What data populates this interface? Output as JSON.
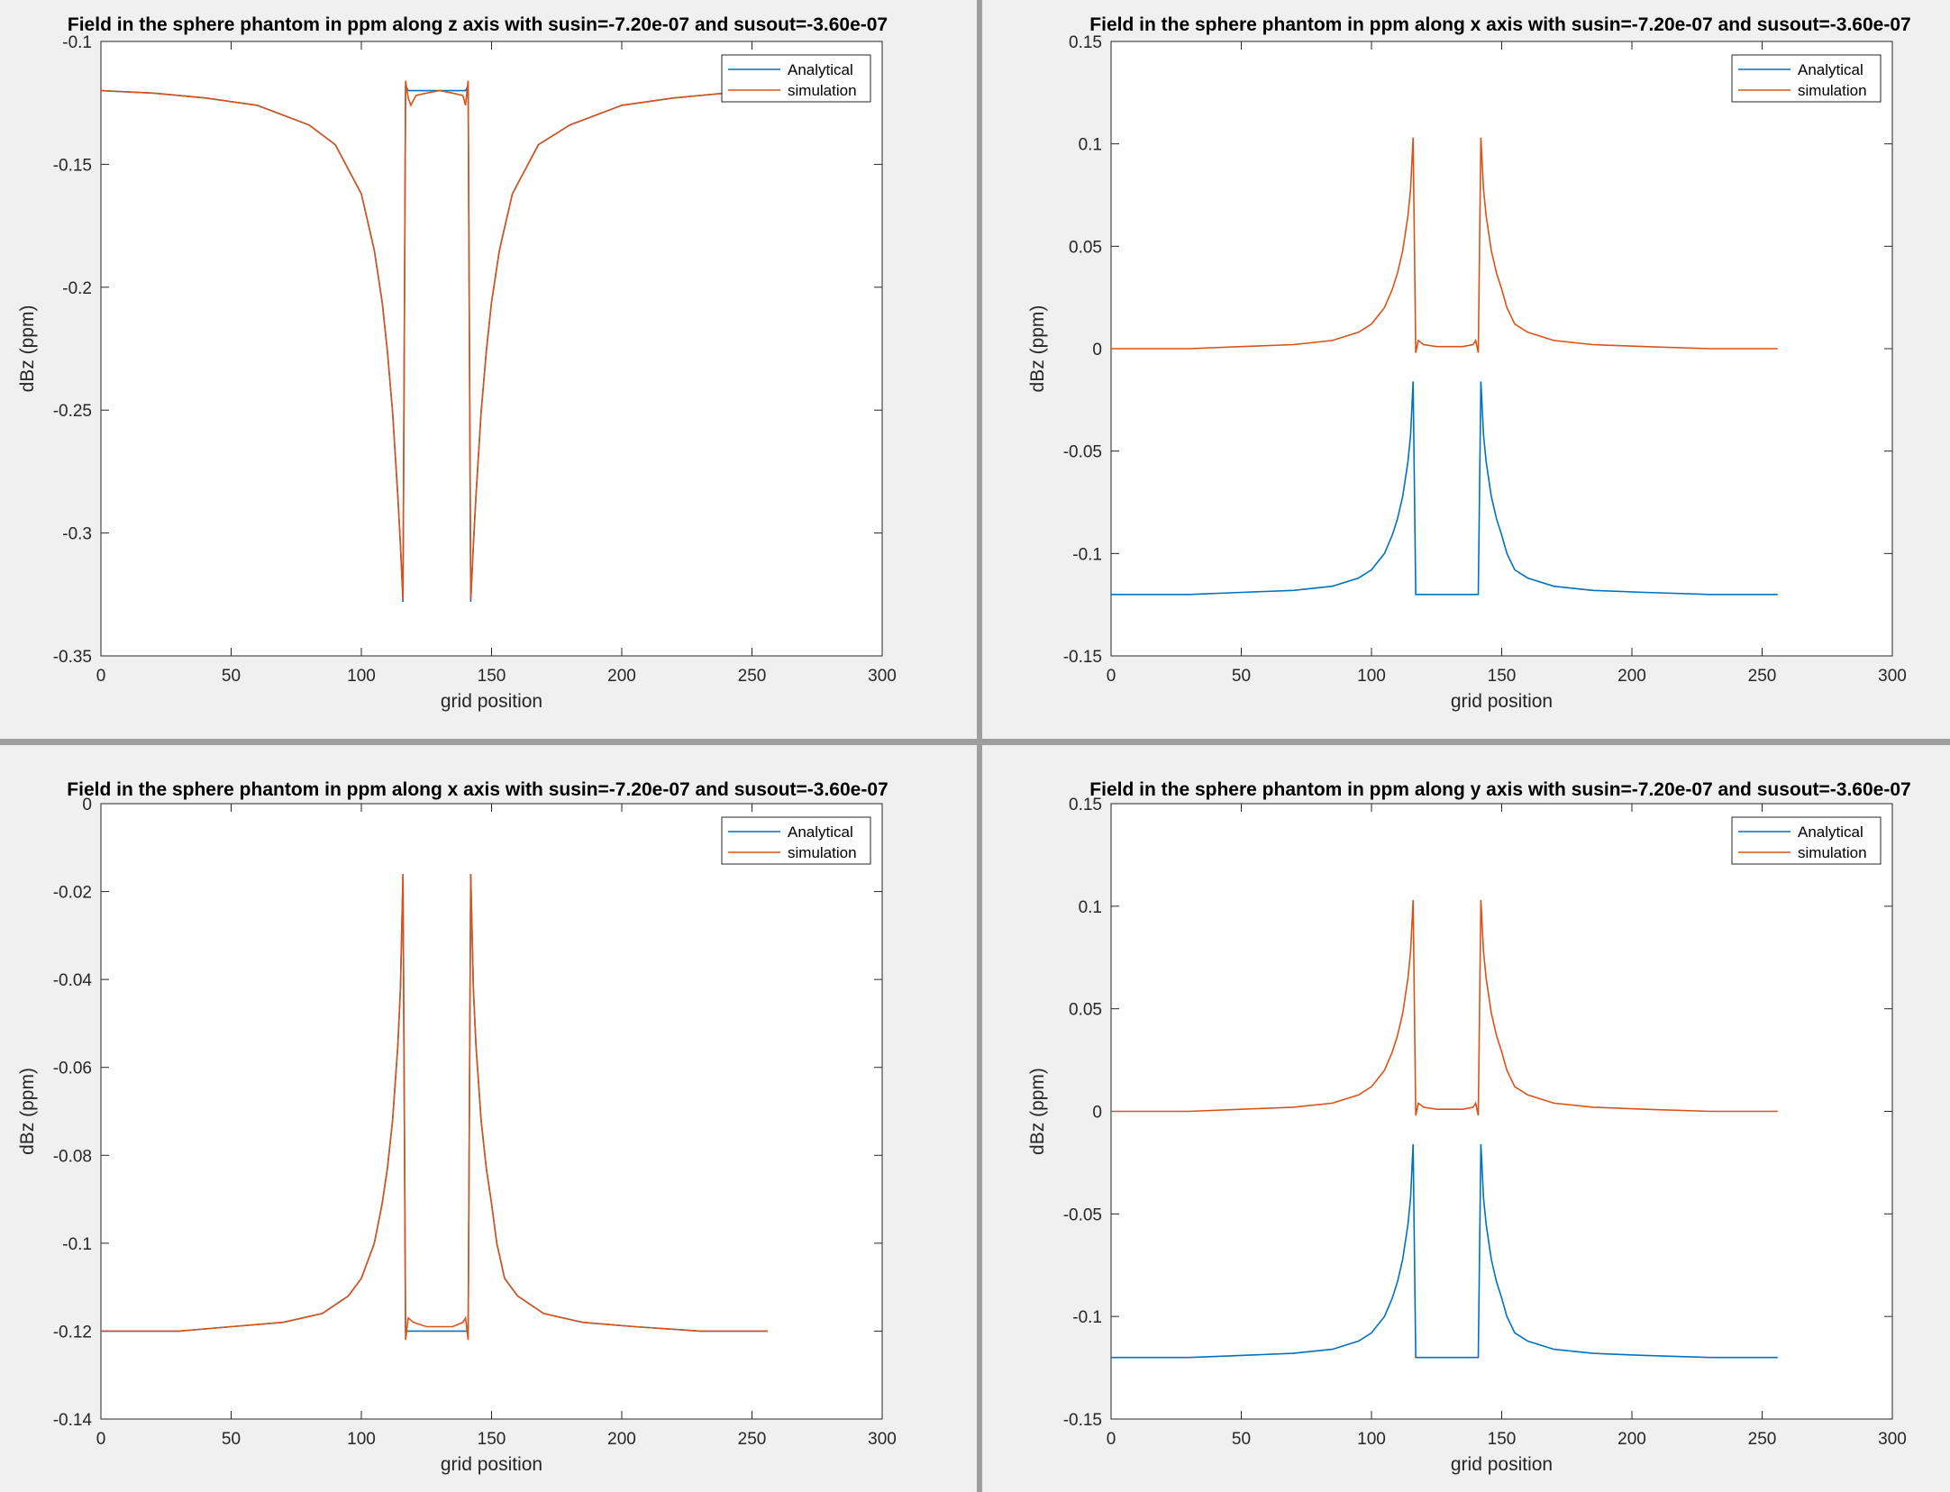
{
  "colors": {
    "analytical": "#0072BD",
    "simulation": "#D95319"
  },
  "chart_data": [
    {
      "type": "line",
      "id": "fig-tl",
      "title": "Field in the sphere phantom in ppm along z axis with susin=-7.20e-07 and susout=-3.60e-07",
      "xlabel": "grid position",
      "ylabel": "dBz (ppm)",
      "xlim": [
        0,
        300
      ],
      "ylim": [
        -0.35,
        -0.1
      ],
      "xticks": [
        0,
        50,
        100,
        150,
        200,
        250,
        300
      ],
      "xtick_labels": [
        "0",
        "50",
        "100",
        "150",
        "200",
        "250",
        "300"
      ],
      "yticks": [
        -0.35,
        -0.3,
        -0.25,
        -0.2,
        -0.15,
        -0.1
      ],
      "ytick_labels": [
        "-0.35",
        "-0.3",
        "-0.25",
        "-0.2",
        "-0.15",
        "-0.1"
      ],
      "legend": [
        "Analytical",
        "simulation"
      ],
      "legend_position": "top-right",
      "series": [
        {
          "name": "Analytical",
          "x": [
            0,
            20,
            40,
            60,
            80,
            90,
            100,
            105,
            108,
            110,
            112,
            114,
            115,
            116,
            117,
            118,
            120,
            130,
            140,
            141,
            142,
            143,
            144,
            146,
            148,
            150,
            153,
            158,
            168,
            180,
            200,
            220,
            240,
            256
          ],
          "y": [
            -0.12,
            -0.121,
            -0.123,
            -0.126,
            -0.134,
            -0.142,
            -0.162,
            -0.185,
            -0.206,
            -0.226,
            -0.251,
            -0.285,
            -0.305,
            -0.328,
            -0.118,
            -0.12,
            -0.12,
            -0.12,
            -0.12,
            -0.118,
            -0.328,
            -0.305,
            -0.285,
            -0.251,
            -0.226,
            -0.206,
            -0.185,
            -0.162,
            -0.142,
            -0.134,
            -0.126,
            -0.123,
            -0.121,
            -0.12
          ]
        },
        {
          "name": "simulation",
          "x": [
            0,
            20,
            40,
            60,
            80,
            90,
            100,
            105,
            108,
            110,
            112,
            114,
            115,
            116,
            117,
            118,
            119,
            121,
            125,
            130,
            135,
            139,
            140,
            141,
            142,
            143,
            144,
            146,
            148,
            150,
            153,
            158,
            168,
            180,
            200,
            220,
            240,
            256
          ],
          "y": [
            -0.12,
            -0.121,
            -0.123,
            -0.126,
            -0.134,
            -0.142,
            -0.162,
            -0.185,
            -0.206,
            -0.226,
            -0.251,
            -0.285,
            -0.305,
            -0.327,
            -0.116,
            -0.123,
            -0.126,
            -0.122,
            -0.121,
            -0.12,
            -0.121,
            -0.122,
            -0.126,
            -0.116,
            -0.327,
            -0.305,
            -0.285,
            -0.251,
            -0.226,
            -0.206,
            -0.185,
            -0.162,
            -0.142,
            -0.134,
            -0.126,
            -0.123,
            -0.121,
            -0.12
          ]
        }
      ]
    },
    {
      "type": "line",
      "id": "fig-tr",
      "title": "Field in the sphere phantom in ppm along x axis with susin=-7.20e-07 and susout=-3.60e-07",
      "xlabel": "grid position",
      "ylabel": "dBz (ppm)",
      "xlim": [
        0,
        300
      ],
      "ylim": [
        -0.15,
        0.15
      ],
      "xticks": [
        0,
        50,
        100,
        150,
        200,
        250,
        300
      ],
      "xtick_labels": [
        "0",
        "50",
        "100",
        "150",
        "200",
        "250",
        "300"
      ],
      "yticks": [
        -0.15,
        -0.1,
        -0.05,
        0,
        0.05,
        0.1,
        0.15
      ],
      "ytick_labels": [
        "-0.15",
        "-0.1",
        "-0.05",
        "0",
        "0.05",
        "0.1",
        "0.15"
      ],
      "legend": [
        "Analytical",
        "simulation"
      ],
      "legend_position": "top-right",
      "series": [
        {
          "name": "Analytical",
          "x": [
            0,
            30,
            50,
            70,
            85,
            95,
            100,
            105,
            108,
            110,
            112,
            114,
            115,
            116,
            117,
            141,
            142,
            143,
            144,
            146,
            148,
            150,
            152,
            155,
            160,
            170,
            185,
            205,
            230,
            256
          ],
          "y": [
            -0.12,
            -0.12,
            -0.119,
            -0.118,
            -0.116,
            -0.112,
            -0.108,
            -0.1,
            -0.091,
            -0.083,
            -0.072,
            -0.055,
            -0.042,
            -0.016,
            -0.12,
            -0.12,
            -0.016,
            -0.042,
            -0.055,
            -0.072,
            -0.083,
            -0.091,
            -0.1,
            -0.108,
            -0.112,
            -0.116,
            -0.118,
            -0.119,
            -0.12,
            -0.12
          ]
        },
        {
          "name": "simulation",
          "x": [
            0,
            30,
            50,
            70,
            85,
            95,
            100,
            105,
            108,
            110,
            112,
            114,
            115,
            116,
            117,
            118,
            120,
            125,
            130,
            135,
            139,
            140,
            141,
            142,
            143,
            144,
            146,
            148,
            150,
            152,
            155,
            160,
            170,
            185,
            205,
            230,
            256
          ],
          "y": [
            0,
            0,
            0.001,
            0.002,
            0.004,
            0.008,
            0.012,
            0.02,
            0.029,
            0.037,
            0.048,
            0.065,
            0.078,
            0.103,
            -0.002,
            0.004,
            0.002,
            0.001,
            0.001,
            0.001,
            0.002,
            0.004,
            -0.002,
            0.103,
            0.078,
            0.065,
            0.048,
            0.037,
            0.029,
            0.02,
            0.012,
            0.008,
            0.004,
            0.002,
            0.001,
            0,
            0
          ]
        }
      ]
    },
    {
      "type": "line",
      "id": "fig-bl",
      "title": "Field in the sphere phantom in ppm along x axis with susin=-7.20e-07 and susout=-3.60e-07",
      "xlabel": "grid position",
      "ylabel": "dBz (ppm)",
      "xlim": [
        0,
        300
      ],
      "ylim": [
        -0.14,
        0
      ],
      "xticks": [
        0,
        50,
        100,
        150,
        200,
        250,
        300
      ],
      "xtick_labels": [
        "0",
        "50",
        "100",
        "150",
        "200",
        "250",
        "300"
      ],
      "yticks": [
        -0.14,
        -0.12,
        -0.1,
        -0.08,
        -0.06,
        -0.04,
        -0.02,
        0
      ],
      "ytick_labels": [
        "-0.14",
        "-0.12",
        "-0.1",
        "-0.08",
        "-0.06",
        "-0.04",
        "-0.02",
        "0"
      ],
      "legend": [
        "Analytical",
        "simulation"
      ],
      "legend_position": "top-right",
      "series": [
        {
          "name": "Analytical",
          "x": [
            0,
            30,
            50,
            70,
            85,
            95,
            100,
            105,
            108,
            110,
            112,
            114,
            115,
            116,
            117,
            141,
            142,
            143,
            144,
            146,
            148,
            150,
            152,
            155,
            160,
            170,
            185,
            205,
            230,
            256
          ],
          "y": [
            -0.12,
            -0.12,
            -0.119,
            -0.118,
            -0.116,
            -0.112,
            -0.108,
            -0.1,
            -0.091,
            -0.083,
            -0.072,
            -0.055,
            -0.042,
            -0.016,
            -0.12,
            -0.12,
            -0.016,
            -0.042,
            -0.055,
            -0.072,
            -0.083,
            -0.091,
            -0.1,
            -0.108,
            -0.112,
            -0.116,
            -0.118,
            -0.119,
            -0.12,
            -0.12
          ]
        },
        {
          "name": "simulation",
          "x": [
            0,
            30,
            50,
            70,
            85,
            95,
            100,
            105,
            108,
            110,
            112,
            114,
            115,
            116,
            117,
            118,
            120,
            125,
            130,
            135,
            139,
            140,
            141,
            142,
            143,
            144,
            146,
            148,
            150,
            152,
            155,
            160,
            170,
            185,
            205,
            230,
            256
          ],
          "y": [
            -0.12,
            -0.12,
            -0.119,
            -0.118,
            -0.116,
            -0.112,
            -0.108,
            -0.1,
            -0.091,
            -0.083,
            -0.072,
            -0.055,
            -0.042,
            -0.016,
            -0.122,
            -0.117,
            -0.118,
            -0.119,
            -0.119,
            -0.119,
            -0.118,
            -0.117,
            -0.122,
            -0.016,
            -0.042,
            -0.055,
            -0.072,
            -0.083,
            -0.091,
            -0.1,
            -0.108,
            -0.112,
            -0.116,
            -0.118,
            -0.119,
            -0.12,
            -0.12
          ]
        }
      ]
    },
    {
      "type": "line",
      "id": "fig-br",
      "title": "Field in the sphere phantom in ppm along y axis with susin=-7.20e-07 and susout=-3.60e-07",
      "xlabel": "grid position",
      "ylabel": "dBz (ppm)",
      "xlim": [
        0,
        300
      ],
      "ylim": [
        -0.15,
        0.15
      ],
      "xticks": [
        0,
        50,
        100,
        150,
        200,
        250,
        300
      ],
      "xtick_labels": [
        "0",
        "50",
        "100",
        "150",
        "200",
        "250",
        "300"
      ],
      "yticks": [
        -0.15,
        -0.1,
        -0.05,
        0,
        0.05,
        0.1,
        0.15
      ],
      "ytick_labels": [
        "-0.15",
        "-0.1",
        "-0.05",
        "0",
        "0.05",
        "0.1",
        "0.15"
      ],
      "legend": [
        "Analytical",
        "simulation"
      ],
      "legend_position": "top-right",
      "series": [
        {
          "name": "Analytical",
          "x": [
            0,
            30,
            50,
            70,
            85,
            95,
            100,
            105,
            108,
            110,
            112,
            114,
            115,
            116,
            117,
            141,
            142,
            143,
            144,
            146,
            148,
            150,
            152,
            155,
            160,
            170,
            185,
            205,
            230,
            256
          ],
          "y": [
            -0.12,
            -0.12,
            -0.119,
            -0.118,
            -0.116,
            -0.112,
            -0.108,
            -0.1,
            -0.091,
            -0.083,
            -0.072,
            -0.055,
            -0.042,
            -0.016,
            -0.12,
            -0.12,
            -0.016,
            -0.042,
            -0.055,
            -0.072,
            -0.083,
            -0.091,
            -0.1,
            -0.108,
            -0.112,
            -0.116,
            -0.118,
            -0.119,
            -0.12,
            -0.12
          ]
        },
        {
          "name": "simulation",
          "x": [
            0,
            30,
            50,
            70,
            85,
            95,
            100,
            105,
            108,
            110,
            112,
            114,
            115,
            116,
            117,
            118,
            120,
            125,
            130,
            135,
            139,
            140,
            141,
            142,
            143,
            144,
            146,
            148,
            150,
            152,
            155,
            160,
            170,
            185,
            205,
            230,
            256
          ],
          "y": [
            0,
            0,
            0.001,
            0.002,
            0.004,
            0.008,
            0.012,
            0.02,
            0.029,
            0.037,
            0.048,
            0.065,
            0.078,
            0.103,
            -0.002,
            0.004,
            0.002,
            0.001,
            0.001,
            0.001,
            0.002,
            0.004,
            -0.002,
            0.103,
            0.078,
            0.065,
            0.048,
            0.037,
            0.029,
            0.02,
            0.012,
            0.008,
            0.004,
            0.002,
            0.001,
            0,
            0
          ]
        }
      ]
    }
  ]
}
